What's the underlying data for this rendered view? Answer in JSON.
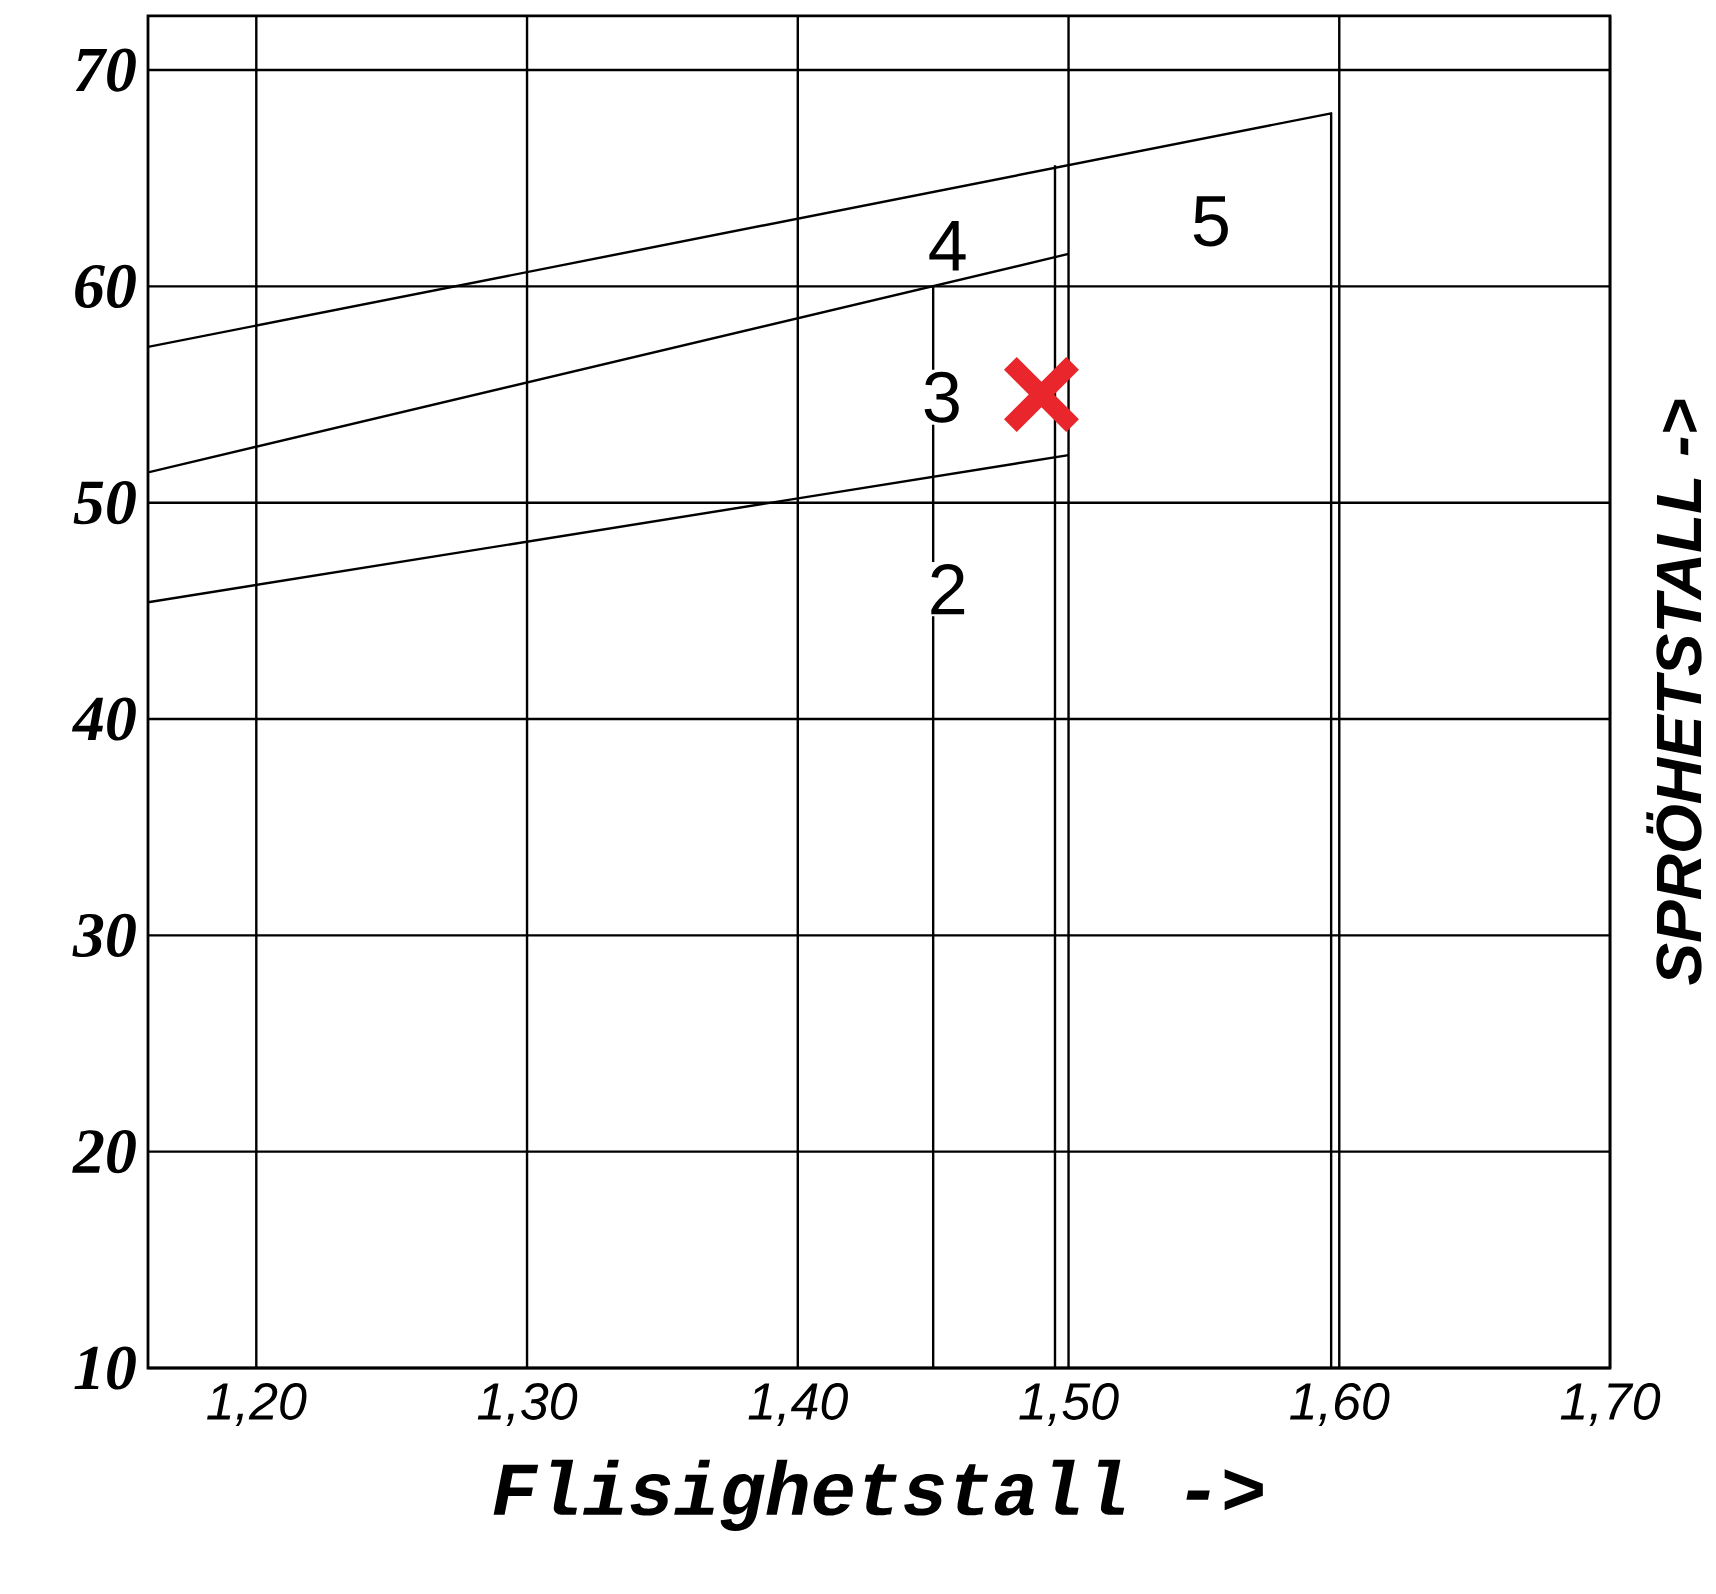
{
  "chart_data": {
    "type": "line",
    "xlabel": "Flisighetstall ->",
    "ylabel": "SPRÖHETSTALL ->",
    "xlim": [
      1.16,
      1.7
    ],
    "ylim": [
      10,
      72.5
    ],
    "xticks": [
      {
        "value": 1.2,
        "label": "1,20"
      },
      {
        "value": 1.3,
        "label": "1,30"
      },
      {
        "value": 1.4,
        "label": "1,40"
      },
      {
        "value": 1.5,
        "label": "1,50"
      },
      {
        "value": 1.6,
        "label": "1,60"
      },
      {
        "value": 1.7,
        "label": "1,70"
      }
    ],
    "yticks": [
      10,
      20,
      30,
      40,
      50,
      60,
      70
    ],
    "grid": true,
    "line_style": "solid",
    "series": [
      {
        "color": "#000000",
        "x": [
          1.16,
          1.597,
          1.597
        ],
        "values": [
          57.2,
          68,
          10
        ]
      },
      {
        "color": "#000000",
        "x": [
          1.16,
          1.5
        ],
        "values": [
          51.4,
          61.5
        ]
      },
      {
        "color": "#000000",
        "x": [
          1.16,
          1.5
        ],
        "values": [
          45.4,
          52.2
        ]
      },
      {
        "color": "#000000",
        "x": [
          1.495,
          1.495
        ],
        "values": [
          65.6,
          10
        ]
      },
      {
        "color": "#000000",
        "x": [
          1.45,
          1.45
        ],
        "values": [
          60,
          10
        ]
      },
      {
        "type": "scatter",
        "color": "#e8262b",
        "marker": "cross",
        "x": [
          1.49
        ],
        "values": [
          55
        ]
      }
    ],
    "annotations": [
      "2",
      "3",
      "4",
      "5"
    ]
  }
}
